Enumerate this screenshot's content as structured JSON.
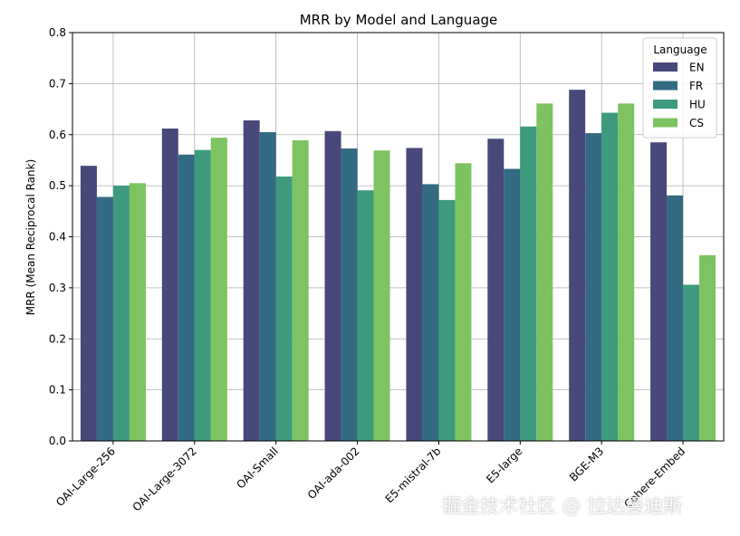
{
  "chart_data": {
    "type": "bar",
    "title": "MRR by Model and Language",
    "xlabel": "",
    "ylabel": "MRR  (Mean Reciprocal Rank)",
    "ylim": [
      0,
      0.8
    ],
    "yticks": [
      "0.0",
      "0.1",
      "0.2",
      "0.3",
      "0.4",
      "0.5",
      "0.6",
      "0.7",
      "0.8"
    ],
    "grid": true,
    "legend": {
      "title": "Language",
      "placement": "top-right"
    },
    "categories": [
      "OAI-Large-256",
      "OAI-Large-3072",
      "OAI-Small",
      "OAI-ada-002",
      "E5-mistral-7b",
      "E5-large",
      "BGE-M3",
      "Cohere-Embed"
    ],
    "series": [
      {
        "name": "EN",
        "color": "#48487a",
        "values": [
          0.539,
          0.612,
          0.628,
          0.607,
          0.574,
          0.592,
          0.688,
          0.585
        ]
      },
      {
        "name": "FR",
        "color": "#336b82",
        "values": [
          0.478,
          0.561,
          0.605,
          0.573,
          0.503,
          0.533,
          0.603,
          0.481
        ]
      },
      {
        "name": "HU",
        "color": "#3d9a7e",
        "values": [
          0.5,
          0.57,
          0.518,
          0.491,
          0.472,
          0.616,
          0.643,
          0.306
        ]
      },
      {
        "name": "CS",
        "color": "#7dc361",
        "values": [
          0.505,
          0.594,
          0.589,
          0.569,
          0.544,
          0.661,
          0.661,
          0.364
        ]
      }
    ]
  },
  "watermark": "掘金技术社区 @ 拉达曼迪斯"
}
